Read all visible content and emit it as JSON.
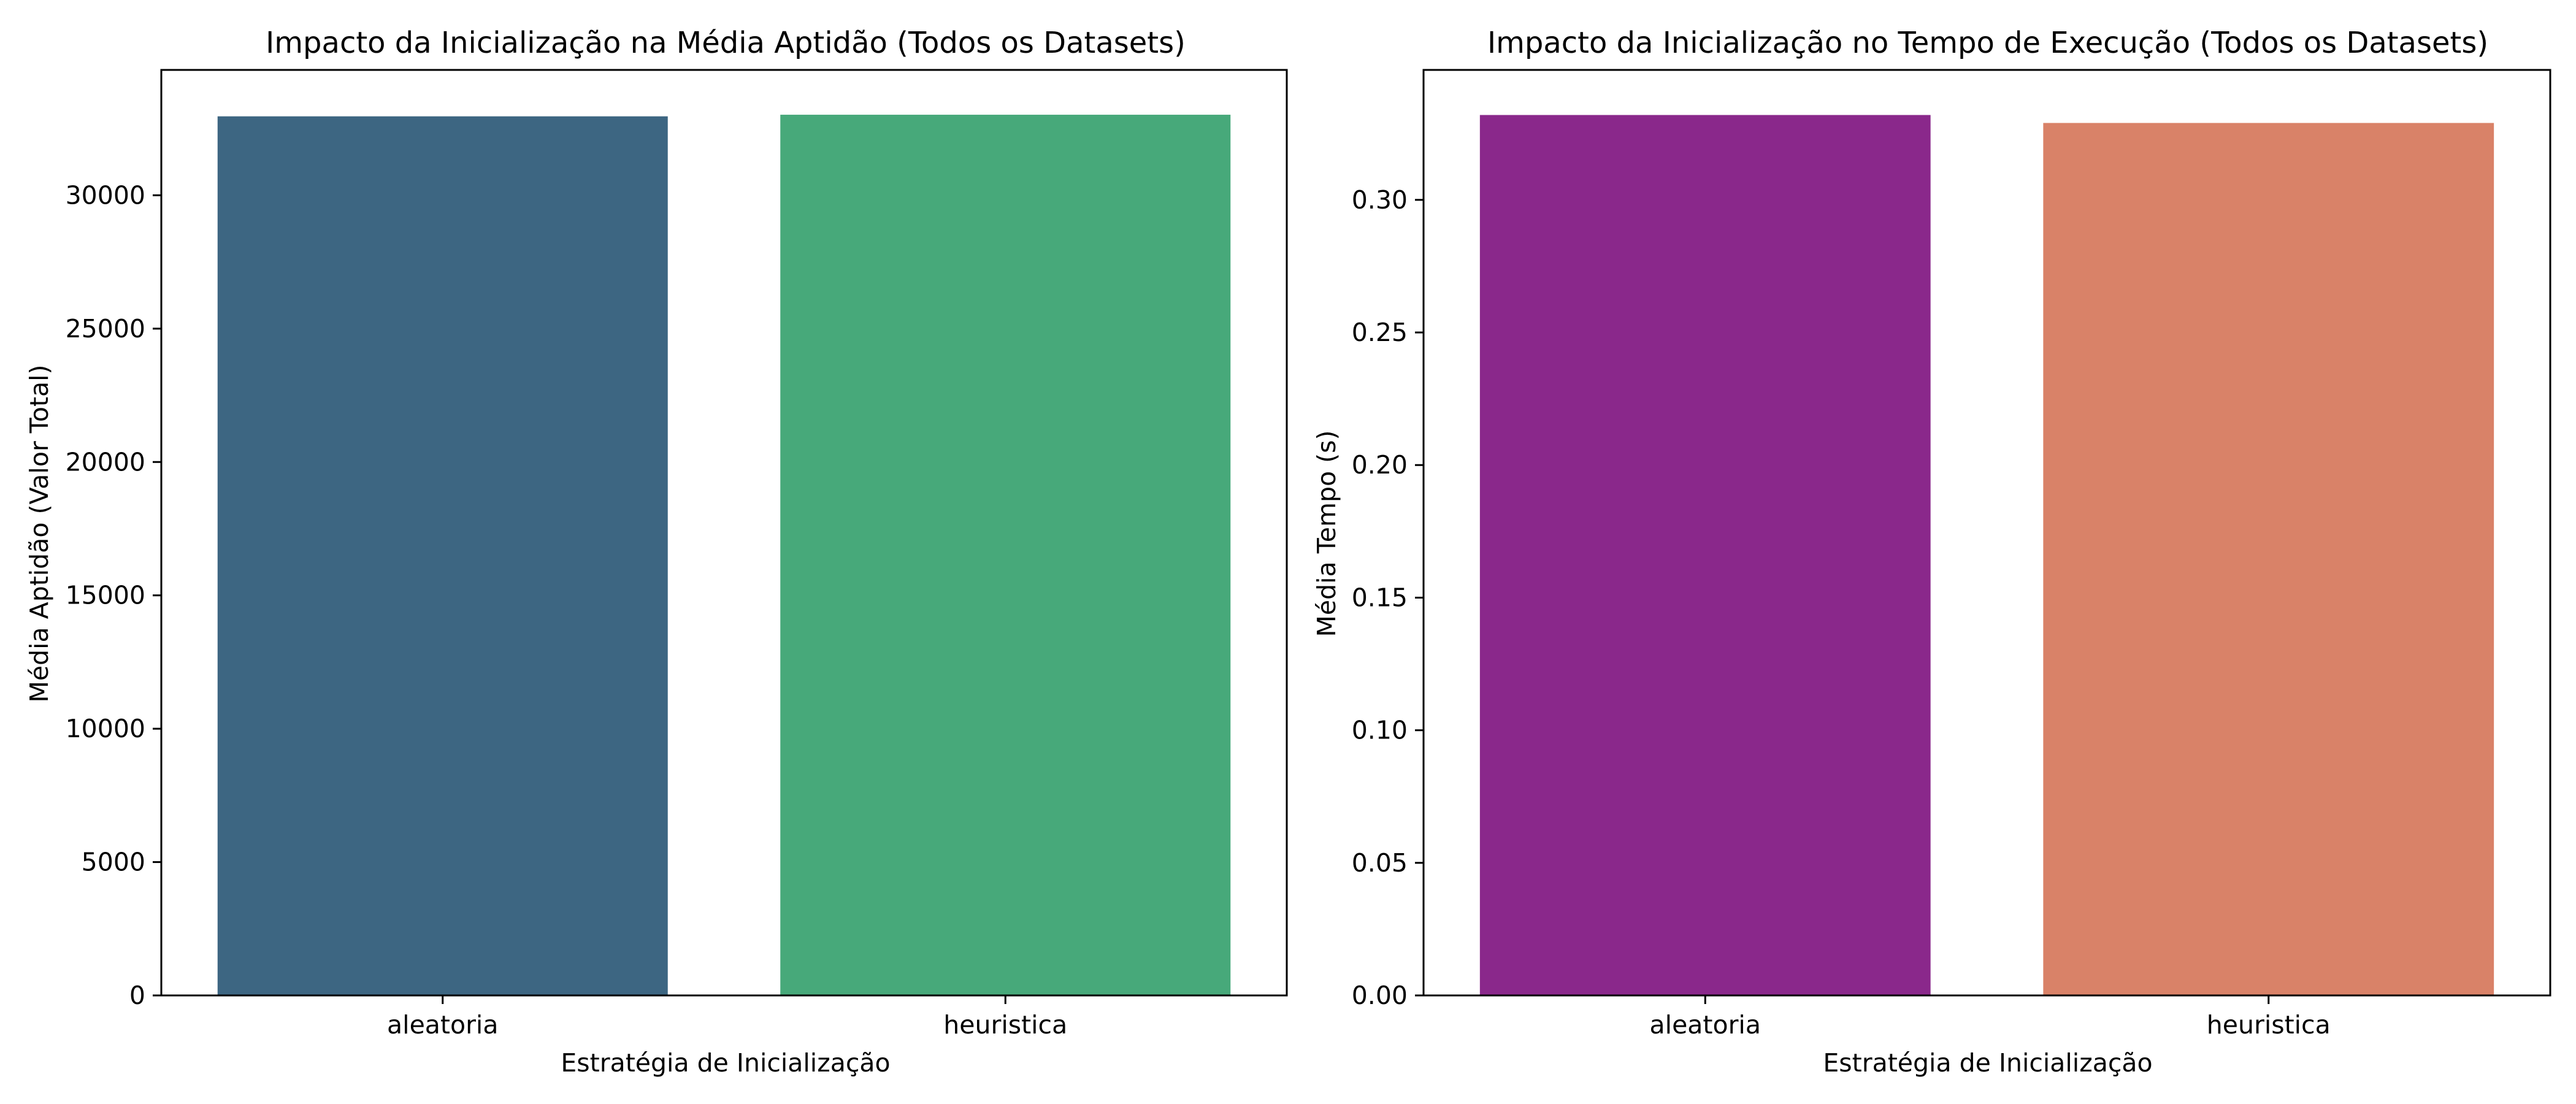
{
  "chart_data": [
    {
      "type": "bar",
      "title": "Impacto da Inicialização na Média Aptidão (Todos os Datasets)",
      "xlabel": "Estratégia de Inicialização",
      "ylabel": "Média Aptidão (Valor Total)",
      "categories": [
        "aleatoria",
        "heuristica"
      ],
      "values": [
        32960,
        33020
      ],
      "colors": [
        "#3d6682",
        "#47a97a"
      ],
      "ylim": [
        0,
        34700
      ],
      "yticks": [
        0,
        5000,
        10000,
        15000,
        20000,
        25000,
        30000
      ],
      "ytick_labels": [
        "0",
        "5000",
        "10000",
        "15000",
        "20000",
        "25000",
        "30000"
      ],
      "grid": false,
      "legend": "none"
    },
    {
      "type": "bar",
      "title": "Impacto da Inicialização no Tempo de Execução (Todos os Datasets)",
      "xlabel": "Estratégia de Inicialização",
      "ylabel": "Média Tempo (s)",
      "categories": [
        "aleatoria",
        "heuristica"
      ],
      "values": [
        0.332,
        0.329
      ],
      "colors": [
        "#8a288b",
        "#d98268"
      ],
      "ylim": [
        0,
        0.349
      ],
      "yticks": [
        0.0,
        0.05,
        0.1,
        0.15,
        0.2,
        0.25,
        0.3
      ],
      "ytick_labels": [
        "0.00",
        "0.05",
        "0.10",
        "0.15",
        "0.20",
        "0.25",
        "0.30"
      ],
      "grid": false,
      "legend": "none"
    }
  ]
}
